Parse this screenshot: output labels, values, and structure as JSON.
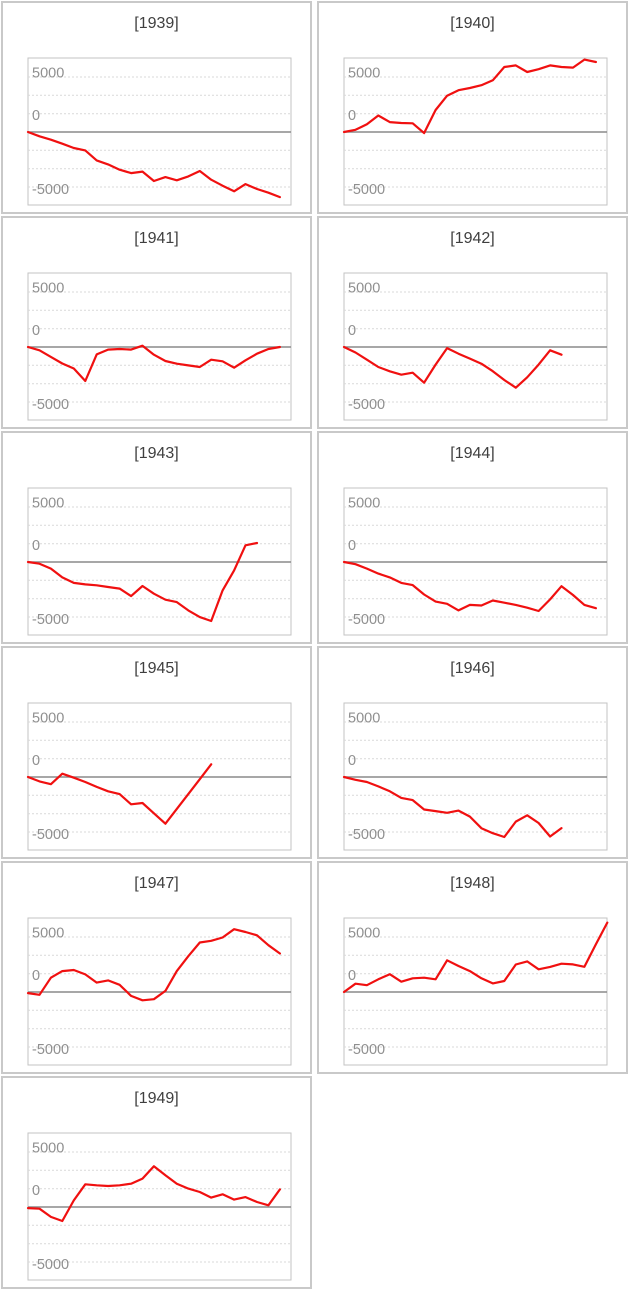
{
  "page": {
    "background": "#ffffff",
    "description": "Grid of small-multiple line charts, one panel per year 1939-1949"
  },
  "style": {
    "series_color": "#f01010",
    "title_color": "#3f3f3f",
    "axis_label_color": "#8f8f8f",
    "gridline_color": "#d9d9d9",
    "plot_border_color": "#c3c3c3",
    "zero_line_color": "#8a8a8a",
    "cell_border_color": "#c9c9c9"
  },
  "chart_data": {
    "type": "line",
    "layout": "small-multiples",
    "grid": {
      "columns": 2,
      "rows": 6
    },
    "legend": "none",
    "xlabel": "",
    "ylabel": "",
    "ylim": [
      -6700,
      6700
    ],
    "yticks": [
      5000,
      0,
      -5000
    ],
    "ytick_labels": [
      "5000",
      "0",
      "-5000"
    ],
    "gridlines": "dashed horizontal lines every 1666.67 units; solid dark line at 0",
    "x_axis": "hidden; points are consecutive intra-year samples, partial years end early",
    "panels": [
      {
        "title": "[1939]",
        "year": 1939,
        "values": [
          0,
          -390,
          -700,
          -1060,
          -1450,
          -1670,
          -2580,
          -2940,
          -3420,
          -3730,
          -3600,
          -4450,
          -4100,
          -4390,
          -4030,
          -3540,
          -4330,
          -4880,
          -5390,
          -4730,
          -5180,
          -5510,
          -5910
        ]
      },
      {
        "title": "[1940]",
        "year": 1940,
        "values": [
          0,
          200,
          700,
          1500,
          900,
          820,
          790,
          -100,
          2000,
          3300,
          3800,
          4000,
          4250,
          4700,
          5900,
          6050,
          5450,
          5700,
          6050,
          5900,
          5850,
          6580,
          6360
        ]
      },
      {
        "title": "[1941]",
        "year": 1941,
        "values": [
          0,
          -300,
          -900,
          -1500,
          -1950,
          -3090,
          -670,
          -240,
          -180,
          -240,
          120,
          -700,
          -1270,
          -1520,
          -1670,
          -1820,
          -1150,
          -1300,
          -1880,
          -1210,
          -610,
          -180,
          0
        ]
      },
      {
        "title": "[1942]",
        "year": 1942,
        "values": [
          0,
          -500,
          -1150,
          -1820,
          -2210,
          -2520,
          -2330,
          -3240,
          -1600,
          -100,
          -610,
          -1050,
          -1520,
          -2200,
          -3000,
          -3700,
          -2750,
          -1600,
          -300,
          -700
        ]
      },
      {
        "title": "[1943]",
        "year": 1943,
        "values": [
          0,
          -150,
          -600,
          -1400,
          -1900,
          -2030,
          -2120,
          -2270,
          -2420,
          -3100,
          -2180,
          -2880,
          -3420,
          -3640,
          -4400,
          -5000,
          -5360,
          -2580,
          -760,
          1520,
          1730
        ]
      },
      {
        "title": "[1944]",
        "year": 1944,
        "values": [
          0,
          -200,
          -600,
          -1050,
          -1400,
          -1900,
          -2100,
          -2950,
          -3600,
          -3800,
          -4400,
          -3900,
          -3950,
          -3500,
          -3700,
          -3900,
          -4150,
          -4450,
          -3400,
          -2200,
          -3000,
          -3900,
          -4200
        ]
      },
      {
        "title": "[1945]",
        "year": 1945,
        "values": [
          0,
          -400,
          -650,
          300,
          -60,
          -450,
          -900,
          -1300,
          -1550,
          -2480,
          -2360,
          -3300,
          -4240,
          -2900,
          -1550,
          -200,
          1150
        ]
      },
      {
        "title": "[1946]",
        "year": 1946,
        "values": [
          0,
          -250,
          -450,
          -850,
          -1300,
          -1900,
          -2100,
          -2950,
          -3100,
          -3250,
          -3050,
          -3600,
          -4650,
          -5100,
          -5450,
          -4050,
          -3480,
          -4180,
          -5400,
          -4640
        ]
      },
      {
        "title": "[1947]",
        "year": 1947,
        "values": [
          -100,
          -250,
          1300,
          1900,
          2000,
          1600,
          850,
          1050,
          650,
          -350,
          -750,
          -650,
          100,
          1900,
          3250,
          4500,
          4650,
          4950,
          5700,
          5450,
          5150,
          4250,
          3500
        ]
      },
      {
        "title": "[1948]",
        "year": 1948,
        "values": [
          0,
          750,
          620,
          1150,
          1620,
          940,
          1240,
          1300,
          1150,
          2880,
          2360,
          1900,
          1240,
          780,
          1000,
          2500,
          2780,
          2060,
          2280,
          2570,
          2510,
          2290,
          4330,
          6300
        ]
      },
      {
        "title": "[1949]",
        "year": 1949,
        "values": [
          -100,
          -150,
          -900,
          -1270,
          600,
          2060,
          1970,
          1910,
          1970,
          2120,
          2580,
          3700,
          2880,
          2120,
          1670,
          1360,
          850,
          1150,
          670,
          900,
          450,
          150,
          1600
        ]
      }
    ]
  }
}
